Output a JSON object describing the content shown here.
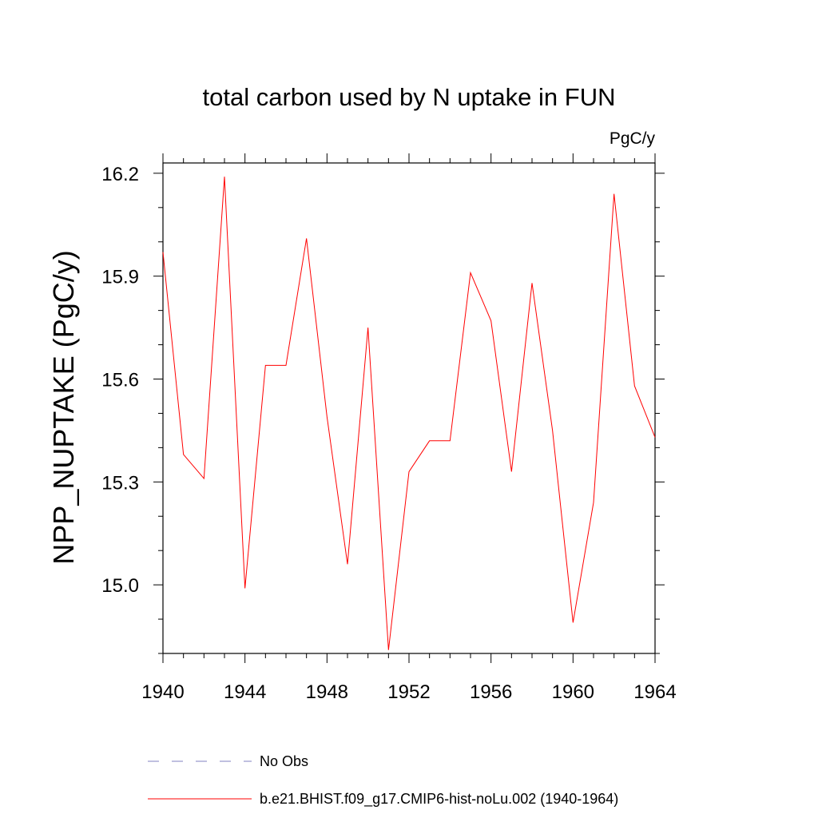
{
  "chart_data": {
    "type": "line",
    "title": "total carbon used by N uptake in FUN",
    "units_label": "PgC/y",
    "xlabel": "",
    "ylabel": "NPP_NUPTAKE  (PgC/y)",
    "xlim": [
      1940,
      1964
    ],
    "ylim": [
      14.8,
      16.23
    ],
    "x_ticks": [
      1940,
      1944,
      1948,
      1952,
      1956,
      1960,
      1964
    ],
    "x_tick_labels": [
      "1940",
      "1944",
      "1948",
      "1952",
      "1956",
      "1960",
      "1964"
    ],
    "y_ticks": [
      15.0,
      15.3,
      15.6,
      15.9,
      16.2
    ],
    "y_tick_labels": [
      "15.0",
      "15.3",
      "15.6",
      "15.9",
      "16.2"
    ],
    "grid": false,
    "legend_position": "bottom",
    "series": [
      {
        "name": "No Obs",
        "color": "#8080c0",
        "dash": "dashed",
        "x": [],
        "values": []
      },
      {
        "name": "b.e21.BHIST.f09_g17.CMIP6-hist-noLu.002 (1940-1964)",
        "color": "#ff0000",
        "dash": "solid",
        "x": [
          1940,
          1941,
          1942,
          1943,
          1944,
          1945,
          1946,
          1947,
          1948,
          1949,
          1950,
          1951,
          1952,
          1953,
          1954,
          1955,
          1956,
          1957,
          1958,
          1959,
          1960,
          1961,
          1962,
          1963,
          1964
        ],
        "values": [
          15.97,
          15.38,
          15.31,
          16.19,
          14.99,
          15.64,
          15.64,
          16.01,
          15.49,
          15.06,
          15.75,
          14.81,
          15.33,
          15.42,
          15.42,
          15.91,
          15.77,
          15.33,
          15.88,
          15.45,
          14.89,
          15.24,
          16.14,
          15.58,
          15.43
        ]
      }
    ]
  }
}
